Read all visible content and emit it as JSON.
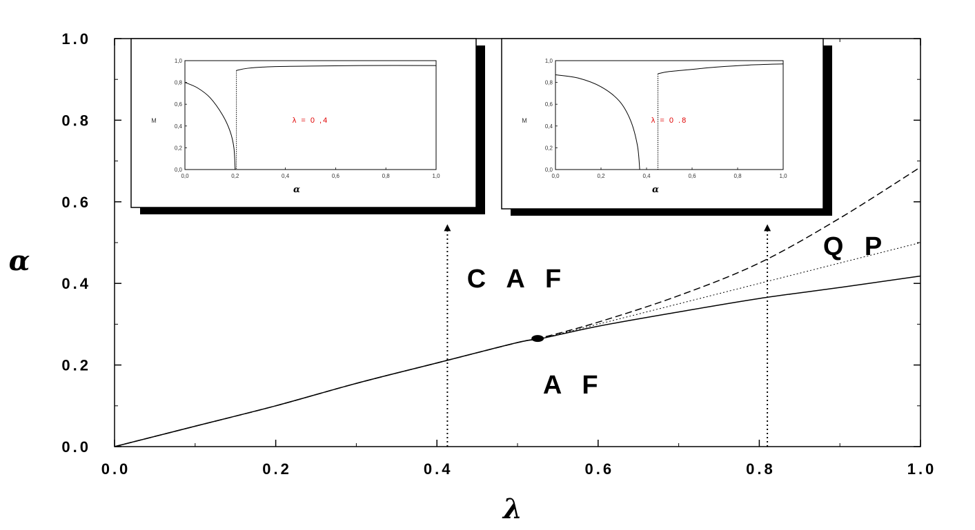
{
  "chart_data": {
    "type": "line",
    "xlabel": "λ",
    "ylabel": "α",
    "xlim": [
      0.0,
      1.0
    ],
    "ylim": [
      0.0,
      1.0
    ],
    "x_ticks": [
      "0.0",
      "0.2",
      "0.4",
      "0.6",
      "0.8",
      "1.0"
    ],
    "y_ticks": [
      "0.0",
      "0.2",
      "0.4",
      "0.6",
      "0.8",
      "1.0"
    ],
    "grid": false,
    "series": [
      {
        "style": "solid",
        "x": [
          0.0,
          0.1,
          0.2,
          0.3,
          0.4,
          0.5,
          0.53,
          0.6,
          0.7,
          0.8,
          0.9,
          1.0
        ],
        "y": [
          0.0,
          0.05,
          0.1,
          0.155,
          0.205,
          0.255,
          0.265,
          0.295,
          0.33,
          0.363,
          0.39,
          0.418
        ]
      },
      {
        "style": "dashed",
        "x": [
          0.0,
          0.1,
          0.2,
          0.3,
          0.4,
          0.5,
          0.53,
          0.6,
          0.7,
          0.8,
          0.9,
          1.0
        ],
        "y": [
          0.0,
          0.05,
          0.1,
          0.155,
          0.205,
          0.255,
          0.267,
          0.305,
          0.37,
          0.45,
          0.56,
          0.685
        ]
      },
      {
        "style": "dotted",
        "x": [
          0.0,
          0.1,
          0.2,
          0.3,
          0.4,
          0.5,
          0.53,
          0.6,
          0.7,
          0.8,
          0.9,
          1.0
        ],
        "y": [
          0.0,
          0.05,
          0.1,
          0.155,
          0.205,
          0.255,
          0.266,
          0.3,
          0.35,
          0.4,
          0.45,
          0.5
        ]
      }
    ],
    "points": [
      {
        "x": 0.525,
        "y": 0.265
      }
    ],
    "arrows": [
      {
        "x": 0.413,
        "y_from": 0.0,
        "y_to": 0.545
      },
      {
        "x": 0.81,
        "y_from": 0.0,
        "y_to": 0.545
      }
    ],
    "region_labels": [
      {
        "text": "C A F",
        "x": 0.5,
        "y": 0.39
      },
      {
        "text": "A F",
        "x": 0.57,
        "y": 0.13
      },
      {
        "text": "Q P",
        "x": 0.92,
        "y": 0.47
      }
    ],
    "insets": [
      {
        "ylabel": "M",
        "xlabel": "α",
        "annotation": "λ =  0 ,4",
        "x_ticks": [
          "0,0",
          "0,2",
          "0,4",
          "0,6",
          "0,8",
          "1,0"
        ],
        "y_ticks": [
          "0,0",
          "0,2",
          "0,4",
          "0,6",
          "0,8",
          "1,0"
        ],
        "xlim": [
          0.0,
          1.0
        ],
        "ylim": [
          0.0,
          1.0
        ],
        "curve_low": {
          "x": [
            0.0,
            0.05,
            0.1,
            0.15,
            0.18,
            0.195,
            0.2
          ],
          "y": [
            0.8,
            0.75,
            0.66,
            0.5,
            0.35,
            0.2,
            0.0
          ]
        },
        "transition_x": 0.205,
        "curve_high": {
          "x": [
            0.205,
            0.25,
            0.35,
            0.5,
            0.7,
            1.0
          ],
          "y": [
            0.91,
            0.93,
            0.945,
            0.95,
            0.955,
            0.955
          ]
        }
      },
      {
        "ylabel": "M",
        "xlabel": "α",
        "annotation": "λ =  0 .8",
        "x_ticks": [
          "0,0",
          "0,2",
          "0,4",
          "0,6",
          "0,8",
          "1,0"
        ],
        "y_ticks": [
          "0,0",
          "0,2",
          "0,4",
          "0,6",
          "0,8",
          "1,0"
        ],
        "xlim": [
          0.0,
          1.0
        ],
        "ylim": [
          0.0,
          1.0
        ],
        "curve_low": {
          "x": [
            0.0,
            0.1,
            0.2,
            0.28,
            0.33,
            0.36,
            0.37
          ],
          "y": [
            0.87,
            0.84,
            0.76,
            0.63,
            0.45,
            0.22,
            0.0
          ]
        },
        "transition_x": 0.45,
        "curve_high": {
          "x": [
            0.45,
            0.5,
            0.6,
            0.7,
            0.85,
            1.0
          ],
          "y": [
            0.88,
            0.9,
            0.92,
            0.94,
            0.96,
            0.97
          ]
        }
      }
    ]
  }
}
